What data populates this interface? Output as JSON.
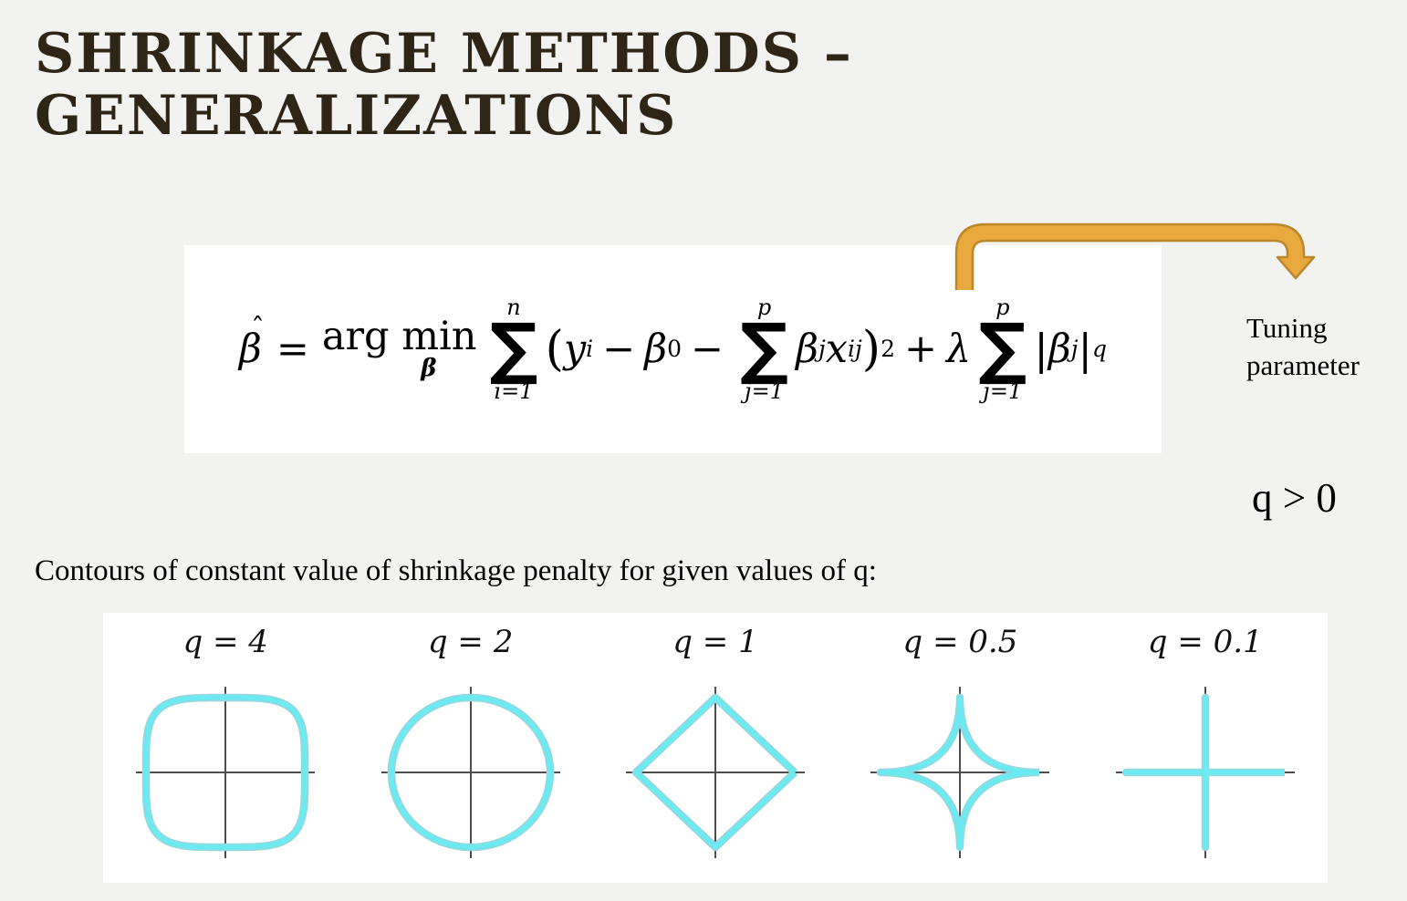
{
  "slide": {
    "title_line1": "SHRINKAGE METHODS –",
    "title_line2": "GENERALIZATIONS",
    "caption": "Contours of constant value of shrinkage penalty for given values of q:",
    "tuning_label": "Tuning parameter",
    "q_condition": "q > 0"
  },
  "formula": {
    "beta": "β",
    "hat": "ˆ",
    "equals": "=",
    "argmin": "arg min",
    "argmin_sub": "β",
    "sigma": "∑",
    "sum1_sup": "n",
    "sum1_sub": "i=1",
    "sum2_sup": "p",
    "sum2_sub": "j=1",
    "sum3_sup": "p",
    "sum3_sub": "j=1",
    "lparen": "(",
    "y": "y",
    "y_sub": "i",
    "minus": "−",
    "beta0": "β",
    "beta0_sub": "0",
    "beta_j": "β",
    "beta_j_sub": "j",
    "x": "x",
    "x_sub": "ij",
    "rparen": ")",
    "sup2": "2",
    "plus": "+",
    "lambda": "λ",
    "bar": "|",
    "sup_q": "q"
  },
  "figure": {
    "panels": [
      {
        "label": "q = 4",
        "q": 4,
        "shape": "rounded square"
      },
      {
        "label": "q = 2",
        "q": 2,
        "shape": "circle"
      },
      {
        "label": "q = 1",
        "q": 1,
        "shape": "diamond"
      },
      {
        "label": "q = 0.5",
        "q": 0.5,
        "shape": "astroid star"
      },
      {
        "label": "q = 0.1",
        "q": 0.1,
        "shape": "cross"
      }
    ]
  },
  "colors": {
    "background": "#F2F2F0",
    "title": "#2E2517",
    "panel_bg": "#FFFFFF",
    "arrow_fill": "#E8A93E",
    "arrow_stroke": "#BC872B",
    "contour": "#6CEAF2",
    "contour_edge": "#93D8DE",
    "axis": "#4D4D4D"
  },
  "chart_data": {
    "type": "line",
    "title": "Contours of constant value of shrinkage penalty for given values of q",
    "description": "Level sets of the penalty |beta1|^q + |beta2|^q = constant, one panel per q value",
    "panels": [
      {
        "label": "q = 4",
        "q": 4,
        "contour_shape": "rounded square"
      },
      {
        "label": "q = 2",
        "q": 2,
        "contour_shape": "circle"
      },
      {
        "label": "q = 1",
        "q": 1,
        "contour_shape": "diamond"
      },
      {
        "label": "q = 0.5",
        "q": 0.5,
        "contour_shape": "concave astroid star"
      },
      {
        "label": "q = 0.1",
        "q": 0.1,
        "contour_shape": "plus / cross along axes"
      }
    ],
    "axes": "unlabeled beta1-beta2 axes crossing at origin in each panel",
    "legend": false
  }
}
